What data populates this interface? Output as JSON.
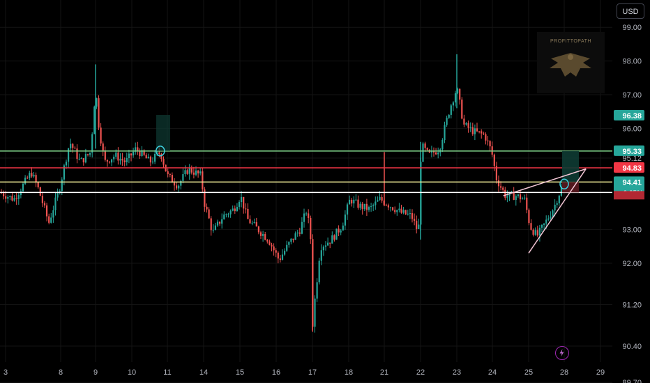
{
  "header": {
    "currency": "USD"
  },
  "watermark": {
    "brand": "PROFITTOPATH",
    "icon": "eagle-icon"
  },
  "footer": {
    "alert_icon": "lightning-bolt-icon"
  },
  "colors": {
    "up": "#26a69a",
    "down": "#ef5350",
    "support": "#ffffff",
    "level_yellow": "#f5f29a",
    "level_green": "#7fd38a",
    "level_red": "#f23645"
  },
  "chart_data": {
    "type": "candlestick",
    "title": "",
    "ylim": [
      89.4,
      99.4
    ],
    "y_ticks": [
      "99.00",
      "98.00",
      "97.00",
      "96.00",
      "95.12",
      "93.00",
      "92.00",
      "91.20",
      "90.40",
      "89.70"
    ],
    "x_ticks": [
      "3",
      "8",
      "9",
      "10",
      "11",
      "14",
      "15",
      "16",
      "17",
      "18",
      "21",
      "22",
      "23",
      "24",
      "25",
      "28",
      "29"
    ],
    "horizontal_levels": [
      {
        "name": "resistance-green",
        "value": 95.33,
        "label": "95.33",
        "color": "#7fd38a"
      },
      {
        "name": "resistance-red",
        "value": 94.83,
        "label": "94.83",
        "color": "#f23645"
      },
      {
        "name": "level-yellow",
        "value": 94.41,
        "color": "#f5f29a"
      },
      {
        "name": "support-white",
        "value": 94.1,
        "color": "#ffffff"
      }
    ],
    "price_badges": [
      {
        "value": 96.38,
        "label": "96.38",
        "color": "#26a69a"
      },
      {
        "value": 95.33,
        "label": "95.33",
        "color": "#26a69a"
      },
      {
        "value": 94.83,
        "label": "94.83",
        "color": "#f23645"
      },
      {
        "value": 94.41,
        "label": "94.41",
        "sub": "+0.25%",
        "color": "#26a69a"
      }
    ],
    "wedge": {
      "lower_start": [
        "25",
        92.3
      ],
      "lower_end": [
        "28.6",
        94.8
      ],
      "upper_start": [
        "24.3",
        94.0
      ],
      "upper_end": [
        "28.6",
        94.8
      ]
    },
    "markers": [
      {
        "x": "10.8",
        "y": 95.33
      },
      {
        "x": "28",
        "y": 94.35
      }
    ]
  }
}
